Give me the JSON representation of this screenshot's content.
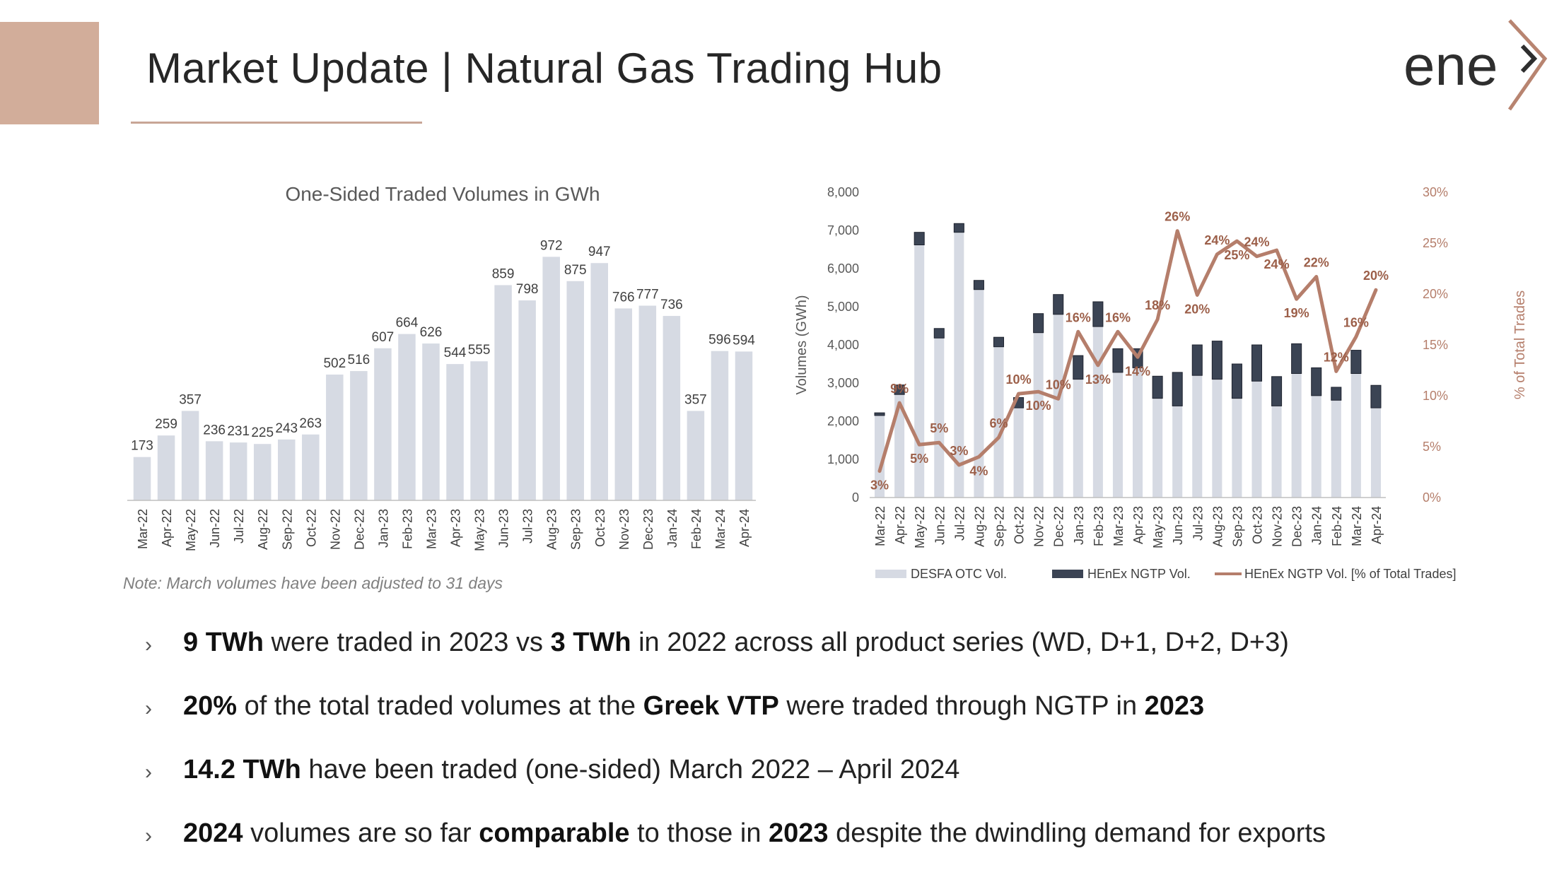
{
  "colors": {
    "accent": "#d2ad9a",
    "rule": "#c8a596",
    "bar": "#d6dae3",
    "ngtp_bar": "#3b4454",
    "line": "#b57e6b",
    "pct_label": "#9c5f49",
    "axis_text": "#595959"
  },
  "header": {
    "title": "Market Update | Natural Gas Trading Hub",
    "logo_text": "ene"
  },
  "note": "Note: March volumes have been adjusted to 31 days",
  "chart_data": [
    {
      "type": "bar",
      "title": "One-Sided Traded Volumes in GWh",
      "categories": [
        "Mar-22",
        "Apr-22",
        "May-22",
        "Jun-22",
        "Jul-22",
        "Aug-22",
        "Sep-22",
        "Oct-22",
        "Nov-22",
        "Dec-22",
        "Jan-23",
        "Feb-23",
        "Mar-23",
        "Apr-23",
        "May-23",
        "Jun-23",
        "Jul-23",
        "Aug-23",
        "Sep-23",
        "Oct-23",
        "Nov-23",
        "Dec-23",
        "Jan-24",
        "Feb-24",
        "Mar-24",
        "Apr-24"
      ],
      "values": [
        173,
        259,
        357,
        236,
        231,
        225,
        243,
        263,
        502,
        516,
        607,
        664,
        626,
        544,
        555,
        859,
        798,
        972,
        875,
        947,
        766,
        777,
        736,
        357,
        596,
        594
      ],
      "ylim": [
        0,
        1100
      ]
    },
    {
      "type": "bar",
      "categories": [
        "Mar-22",
        "Apr-22",
        "May-22",
        "Jun-22",
        "Jul-22",
        "Aug-22",
        "Sep-22",
        "Oct-22",
        "Nov-22",
        "Dec-22",
        "Jan-23",
        "Feb-23",
        "Mar-23",
        "Apr-23",
        "May-23",
        "Jun-23",
        "Jul-23",
        "Aug-23",
        "Sep-23",
        "Oct-23",
        "Nov-23",
        "Dec-23",
        "Jan-24",
        "Feb-24",
        "Mar-24",
        "Apr-24"
      ],
      "ylabel": "Volumes (GWh)",
      "y2label": "% of Total Trades",
      "ylim": [
        0,
        8000
      ],
      "y2lim": [
        0,
        30
      ],
      "yticks": [
        "0",
        "1,000",
        "2,000",
        "3,000",
        "4,000",
        "5,000",
        "6,000",
        "7,000",
        "8,000"
      ],
      "y2ticks": [
        "0%",
        "5%",
        "10%",
        "15%",
        "20%",
        "25%",
        "30%"
      ],
      "series": [
        {
          "name": "DESFA OTC Vol.",
          "type": "stacked-bar",
          "values": [
            2150,
            2700,
            6620,
            4180,
            6950,
            5450,
            3950,
            2350,
            4320,
            4800,
            3100,
            4480,
            3280,
            3400,
            2600,
            2400,
            3200,
            3100,
            2600,
            3050,
            2400,
            3250,
            2670,
            2550,
            3250,
            2350
          ]
        },
        {
          "name": "HEnEx NGTP Vol.",
          "type": "stacked-bar",
          "values": [
            70,
            250,
            330,
            250,
            230,
            240,
            250,
            270,
            500,
            520,
            620,
            650,
            620,
            500,
            580,
            880,
            800,
            1000,
            900,
            950,
            770,
            780,
            730,
            340,
            610,
            590
          ]
        },
        {
          "name": "HEnEx NGTP Vol. [% of Total Trades]",
          "type": "line",
          "axis": "secondary",
          "values": [
            2.6,
            9.3,
            5.2,
            5.4,
            3.2,
            4.0,
            5.9,
            10.2,
            10.4,
            9.7,
            16.3,
            13.0,
            16.3,
            13.8,
            17.5,
            26.2,
            19.9,
            23.9,
            25.2,
            23.7,
            24.3,
            19.5,
            21.7,
            12.4,
            15.8,
            20.4
          ],
          "labels": [
            "3%",
            "9%",
            "5%",
            "5%",
            "3%",
            "4%",
            "6%",
            "10%",
            "10%",
            "10%",
            "16%",
            "13%",
            "16%",
            "14%",
            "18%",
            "26%",
            "20%",
            "24%",
            "25%",
            "24%",
            "24%",
            "19%",
            "22%",
            "12%",
            "16%",
            "20%"
          ]
        }
      ],
      "legend_position": "bottom"
    }
  ],
  "bullets": [
    {
      "parts": [
        {
          "t": "9 TWh",
          "b": true
        },
        {
          "t": " were traded in 2023 vs ",
          "b": false
        },
        {
          "t": "3 TWh",
          "b": true
        },
        {
          "t": " in 2022 across all product series (WD, D+1, D+2, D+3)",
          "b": false
        }
      ]
    },
    {
      "parts": [
        {
          "t": "20%",
          "b": true
        },
        {
          "t": " of the total traded volumes at the ",
          "b": false
        },
        {
          "t": "Greek VTP",
          "b": true
        },
        {
          "t": " were traded through NGTP in ",
          "b": false
        },
        {
          "t": "2023",
          "b": true
        }
      ]
    },
    {
      "parts": [
        {
          "t": "14.2 TWh",
          "b": true
        },
        {
          "t": " have been traded (one-sided) March 2022 – April 2024",
          "b": false
        }
      ]
    },
    {
      "parts": [
        {
          "t": "2024",
          "b": true
        },
        {
          "t": " volumes are so far ",
          "b": false
        },
        {
          "t": "comparable",
          "b": true
        },
        {
          "t": " to those in ",
          "b": false
        },
        {
          "t": "2023",
          "b": true
        },
        {
          "t": " despite the dwindling demand for exports",
          "b": false
        }
      ]
    }
  ]
}
